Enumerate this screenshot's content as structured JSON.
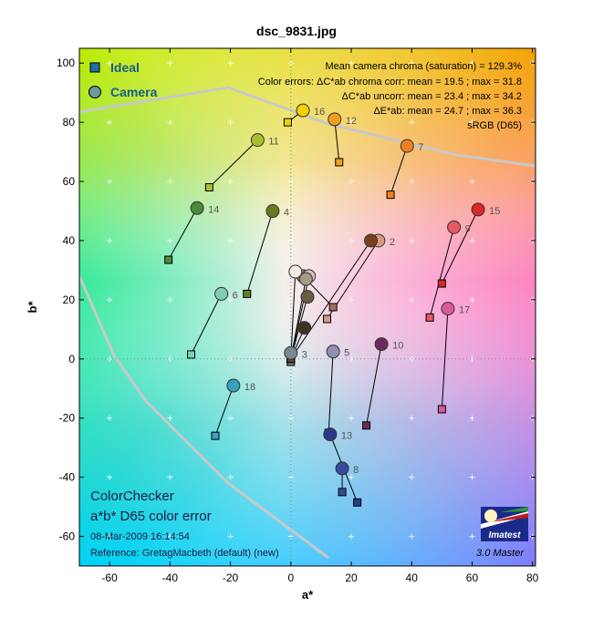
{
  "page": {
    "title": "dsc_9831.jpg"
  },
  "chart_data": {
    "type": "scatter",
    "title": "dsc_9831.jpg",
    "xlabel": "a*",
    "ylabel": "b*",
    "xlim": [
      -70,
      81
    ],
    "ylim": [
      -70,
      105
    ],
    "x_ticks": [
      -60,
      -40,
      -20,
      0,
      20,
      40,
      60,
      80
    ],
    "y_ticks": [
      -60,
      -40,
      -20,
      0,
      20,
      40,
      60,
      80,
      100
    ],
    "grid": "light crosses at 10-unit intervals",
    "legend": {
      "placement": "top-left",
      "entries": [
        {
          "name": "Ideal",
          "marker": "square",
          "color": "#1e6fa8"
        },
        {
          "name": "Camera",
          "marker": "circle",
          "color": "#6a9aa0"
        }
      ]
    },
    "stats": [
      "Mean camera chroma (saturation) = 129.3%",
      "Color errors:  ΔC*ab chroma corr:  mean = 19.5 ;  max = 31.8",
      "ΔC*ab uncorr:  mean = 23.4 ;  max = 34.2",
      "ΔE*ab:  mean = 24.7 ;  max = 36.3",
      "sRGB (D65)"
    ],
    "bottom_left_text": {
      "line1": "ColorChecker",
      "line2": "a*b* D65 color error",
      "date": "08-Mar-2009 16:14:54",
      "reference": "Reference: GretagMacbeth (default) (new)"
    },
    "logo_text": "Imatest",
    "version_text": "3.0  Master",
    "series": [
      {
        "name": "Ideal",
        "marker": "square"
      },
      {
        "name": "Camera",
        "marker": "circle"
      }
    ],
    "patches": [
      {
        "id": 1,
        "label": "",
        "ideal": [
          14,
          17.5
        ],
        "camera": [
          4,
          28
        ],
        "color": "#a0705a"
      },
      {
        "id": 2,
        "label": "2",
        "ideal": [
          12,
          13.5
        ],
        "camera": [
          29,
          40
        ],
        "color": "#d99a80"
      },
      {
        "id": 3,
        "label": "3",
        "ideal": [
          0,
          -1
        ],
        "camera": [
          0,
          2
        ],
        "color": "#7a8a94"
      },
      {
        "id": 4,
        "label": "4",
        "ideal": [
          -14.5,
          22
        ],
        "camera": [
          -6,
          50
        ],
        "color": "#6a7a22"
      },
      {
        "id": 5,
        "label": "5",
        "ideal": [
          12.5,
          -25
        ],
        "camera": [
          14,
          2.5
        ],
        "color": "#9090b0"
      },
      {
        "id": 6,
        "label": "6",
        "ideal": [
          -33,
          1.5
        ],
        "camera": [
          -23,
          22
        ],
        "color": "#7fcfb0"
      },
      {
        "id": 7,
        "label": "7",
        "ideal": [
          33,
          55.5
        ],
        "camera": [
          38.5,
          72
        ],
        "color": "#f08020"
      },
      {
        "id": 8,
        "label": "8",
        "ideal": [
          17,
          -45
        ],
        "camera": [
          17,
          -37
        ],
        "color": "#3a4a9a"
      },
      {
        "id": 9,
        "label": "9",
        "ideal": [
          46,
          14
        ],
        "camera": [
          54,
          44.5
        ],
        "color": "#e45a64"
      },
      {
        "id": 10,
        "label": "10",
        "ideal": [
          25,
          -22.5
        ],
        "camera": [
          30,
          5
        ],
        "color": "#6a2a5a"
      },
      {
        "id": 11,
        "label": "11",
        "ideal": [
          -27,
          58
        ],
        "camera": [
          -11,
          74
        ],
        "color": "#a8c030"
      },
      {
        "id": 12,
        "label": "12",
        "ideal": [
          16,
          66.5
        ],
        "camera": [
          14.5,
          81
        ],
        "color": "#f0a020"
      },
      {
        "id": 13,
        "label": "13",
        "ideal": [
          22,
          -48.5
        ],
        "camera": [
          13,
          -25.5
        ],
        "color": "#283a8a"
      },
      {
        "id": 14,
        "label": "14",
        "ideal": [
          -40.5,
          33.5
        ],
        "camera": [
          -31,
          51
        ],
        "color": "#4a8a3a"
      },
      {
        "id": 15,
        "label": "15",
        "ideal": [
          50,
          25.5
        ],
        "camera": [
          62,
          50.5
        ],
        "color": "#d82828"
      },
      {
        "id": 16,
        "label": "16",
        "ideal": [
          -1,
          80
        ],
        "camera": [
          4,
          84
        ],
        "color": "#f4d000"
      },
      {
        "id": 17,
        "label": "17",
        "ideal": [
          50,
          -17
        ],
        "camera": [
          52,
          17
        ],
        "color": "#d85a9a"
      },
      {
        "id": 18,
        "label": "18",
        "ideal": [
          -25,
          -26
        ],
        "camera": [
          -19,
          -9
        ],
        "color": "#3aa0c0"
      },
      {
        "id": 19,
        "label": "",
        "ideal": [
          0,
          0
        ],
        "camera": [
          1.5,
          29.5
        ],
        "color": "#f6f0e8"
      },
      {
        "id": 20,
        "label": "",
        "ideal": [
          0,
          0
        ],
        "camera": [
          6,
          28
        ],
        "color": "#d0c4b8"
      },
      {
        "id": 21,
        "label": "",
        "ideal": [
          0,
          0
        ],
        "camera": [
          5,
          27
        ],
        "color": "#a89888"
      },
      {
        "id": 22,
        "label": "",
        "ideal": [
          0,
          0
        ],
        "camera": [
          5.5,
          21
        ],
        "color": "#6a5a48"
      },
      {
        "id": 23,
        "label": "",
        "ideal": [
          0,
          0
        ],
        "camera": [
          4.5,
          10.5
        ],
        "color": "#3e3226"
      },
      {
        "id": 24,
        "label": "",
        "ideal": [
          0,
          0
        ],
        "camera": [
          26.5,
          40
        ],
        "color": "#7a4020"
      }
    ]
  }
}
